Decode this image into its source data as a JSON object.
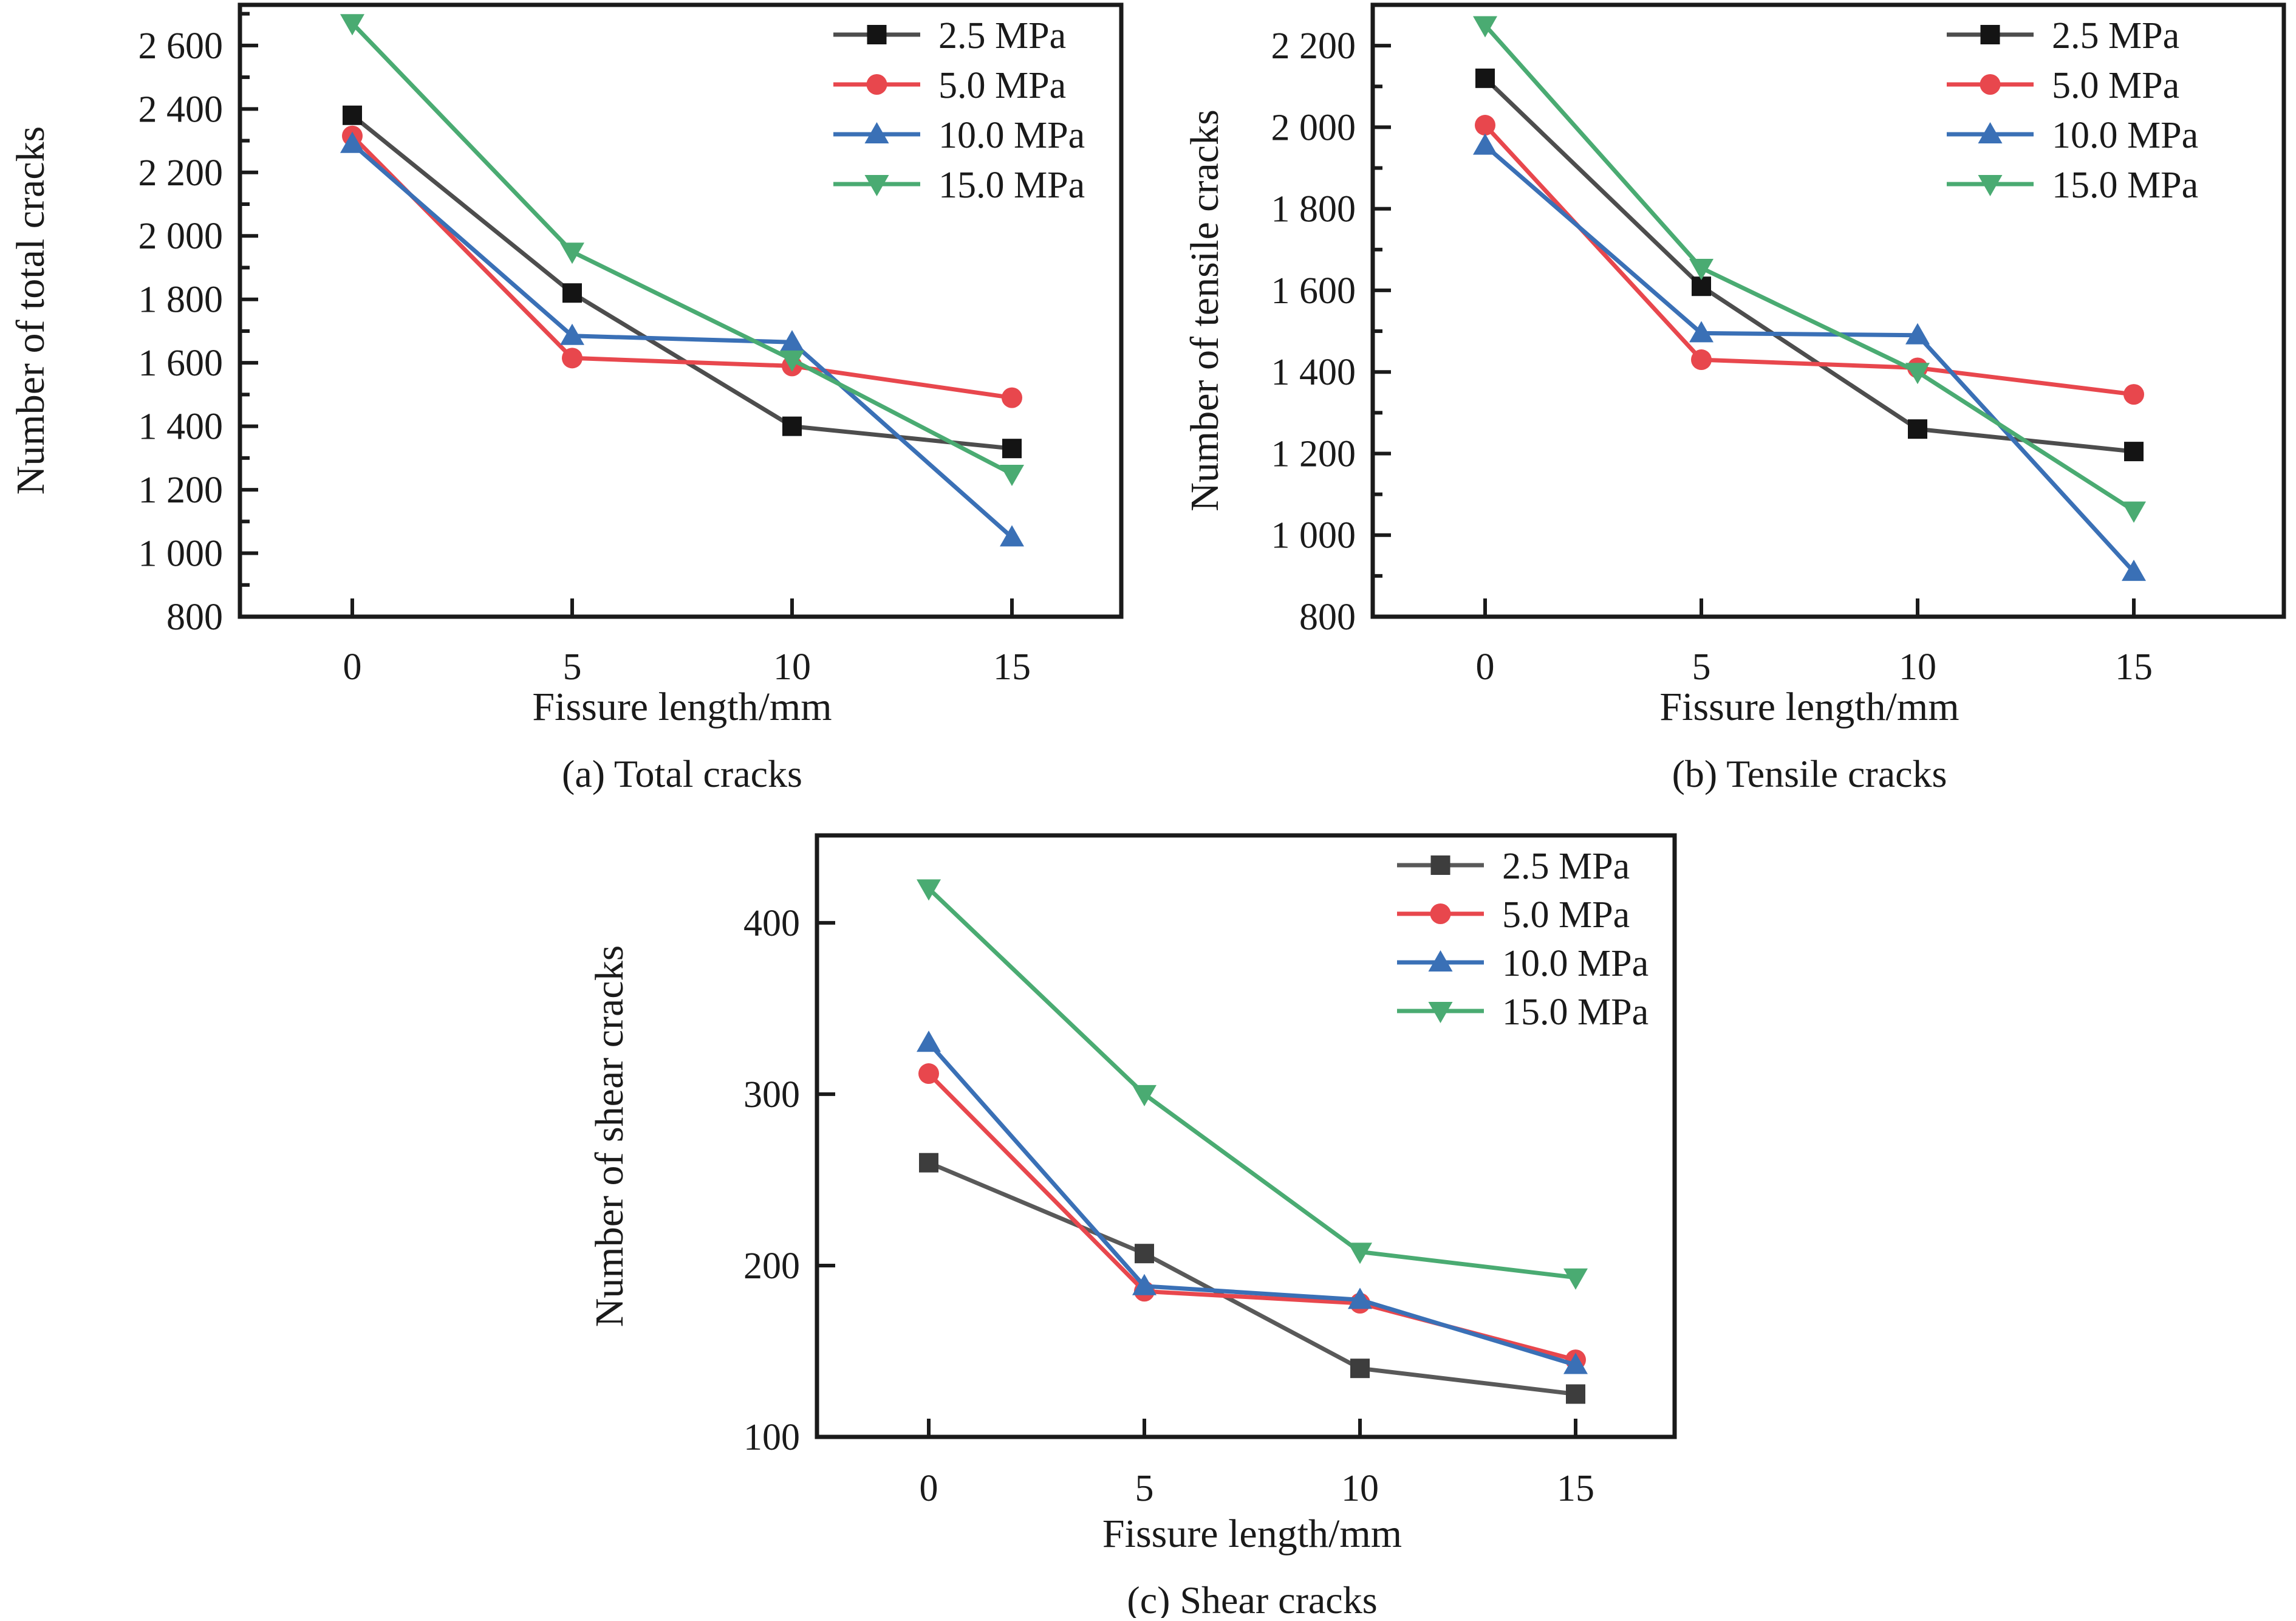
{
  "page": {
    "background": "#ffffff",
    "text_color": "#1a1a1a",
    "frame_color": "#1a1a1a"
  },
  "chart_data": [
    {
      "key": "total",
      "type": "line",
      "caption": "(a) Total cracks",
      "xlabel": "Fissure length/mm",
      "ylabel": "Number of total cracks",
      "x": [
        0,
        5,
        10,
        15
      ],
      "x_tick_labels": [
        "0",
        "5",
        "10",
        "15"
      ],
      "ylim": [
        800,
        2728
      ],
      "y_ticks": [
        800,
        1000,
        1200,
        1400,
        1600,
        1800,
        2000,
        2200,
        2400,
        2600
      ],
      "y_tick_labels": [
        "800",
        "1 000",
        "1 200",
        "1 400",
        "1 600",
        "1 800",
        "2 000",
        "2 200",
        "2 400",
        "2 600"
      ],
      "y_minor_ticks": [
        900,
        1100,
        1300,
        1500,
        1700,
        1900,
        2100,
        2300,
        2500,
        2700
      ],
      "legend_position": "top-right",
      "series": [
        {
          "name": "2.5 MPa",
          "marker": "square",
          "line_color": "#4d4d4d",
          "marker_color": "#141414",
          "values": [
            2380,
            1820,
            1400,
            1330
          ]
        },
        {
          "name": "5.0 MPa",
          "marker": "circle",
          "line_color": "#e8474d",
          "marker_color": "#e8474d",
          "values": [
            2315,
            1615,
            1590,
            1490
          ]
        },
        {
          "name": "10.0 MPa",
          "marker": "triangle-up",
          "line_color": "#3a70b6",
          "marker_color": "#3a70b6",
          "values": [
            2290,
            1685,
            1665,
            1050
          ]
        },
        {
          "name": "15.0 MPa",
          "marker": "triangle-down",
          "line_color": "#4aab72",
          "marker_color": "#4aab72",
          "values": [
            2670,
            1950,
            1610,
            1250
          ]
        }
      ]
    },
    {
      "key": "tensile",
      "type": "line",
      "caption": "(b) Tensile cracks",
      "xlabel": "Fissure length/mm",
      "ylabel": "Number of tensile cracks",
      "x": [
        0,
        5,
        10,
        15
      ],
      "x_tick_labels": [
        "0",
        "5",
        "10",
        "15"
      ],
      "ylim": [
        800,
        2300
      ],
      "y_ticks": [
        800,
        1000,
        1200,
        1400,
        1600,
        1800,
        2000,
        2200
      ],
      "y_tick_labels": [
        "800",
        "1 000",
        "1 200",
        "1 400",
        "1 600",
        "1 800",
        "2 000",
        "2 200"
      ],
      "y_minor_ticks": [
        900,
        1100,
        1300,
        1500,
        1700,
        1900,
        2100
      ],
      "legend_position": "top-right",
      "series": [
        {
          "name": "2.5 MPa",
          "marker": "square",
          "line_color": "#4d4d4d",
          "marker_color": "#141414",
          "values": [
            2120,
            1610,
            1260,
            1205
          ]
        },
        {
          "name": "5.0 MPa",
          "marker": "circle",
          "line_color": "#e8474d",
          "marker_color": "#e8474d",
          "values": [
            2005,
            1430,
            1410,
            1345
          ]
        },
        {
          "name": "10.0 MPa",
          "marker": "triangle-up",
          "line_color": "#3a70b6",
          "marker_color": "#3a70b6",
          "values": [
            1955,
            1495,
            1490,
            910
          ]
        },
        {
          "name": "15.0 MPa",
          "marker": "triangle-down",
          "line_color": "#4aab72",
          "marker_color": "#4aab72",
          "values": [
            2250,
            1655,
            1400,
            1060
          ]
        }
      ]
    },
    {
      "key": "shear",
      "type": "line",
      "caption": "(c) Shear cracks",
      "xlabel": "Fissure length/mm",
      "ylabel": "Number of shear cracks",
      "x": [
        0,
        5,
        10,
        15
      ],
      "x_tick_labels": [
        "0",
        "5",
        "10",
        "15"
      ],
      "ylim": [
        100,
        451
      ],
      "y_ticks": [
        100,
        200,
        300,
        400
      ],
      "y_tick_labels": [
        "100",
        "200",
        "300",
        "400"
      ],
      "y_minor_ticks": [],
      "legend_position": "top-right",
      "series": [
        {
          "name": "2.5 MPa",
          "marker": "square",
          "line_color": "#595959",
          "marker_color": "#3d3d3d",
          "values": [
            260,
            207,
            140,
            125
          ]
        },
        {
          "name": "5.0 MPa",
          "marker": "circle",
          "line_color": "#e8474d",
          "marker_color": "#e8474d",
          "values": [
            312,
            185,
            178,
            145
          ]
        },
        {
          "name": "10.0 MPa",
          "marker": "triangle-up",
          "line_color": "#3a70b6",
          "marker_color": "#3a70b6",
          "values": [
            330,
            188,
            180,
            142
          ]
        },
        {
          "name": "15.0 MPa",
          "marker": "triangle-down",
          "line_color": "#4aab72",
          "marker_color": "#4aab72",
          "values": [
            420,
            300,
            208,
            193
          ]
        }
      ]
    }
  ]
}
